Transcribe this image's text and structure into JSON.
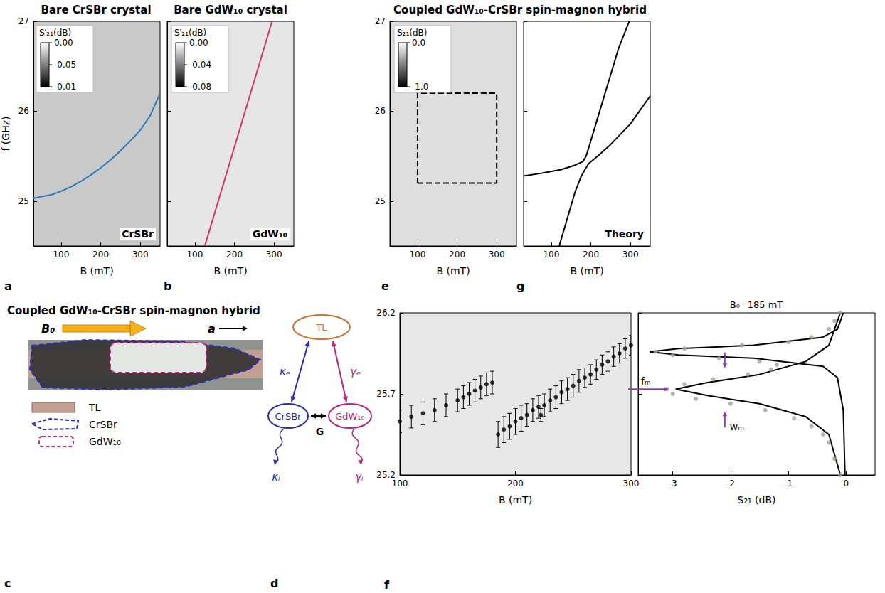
{
  "chart_data": [
    {
      "panel": "a",
      "title": "Bare CrSBr crystal",
      "type": "line",
      "xlabel": "B (mT)",
      "ylabel": "f (GHz)",
      "xlim": [
        30,
        350
      ],
      "xticks": [
        100,
        200,
        300
      ],
      "ylim": [
        24.5,
        27
      ],
      "yticks": [
        25,
        26,
        27
      ],
      "colorbar": {
        "label": "S′₂₁(dB)",
        "ticks": [
          {
            "value": 0,
            "label": "0.00"
          },
          {
            "value": -0.05,
            "label": "-0.05"
          },
          {
            "value": -0.01,
            "label": "-0.01"
          }
        ]
      },
      "annotation": "CrSBr",
      "series": [
        {
          "color": "#2a7ab9",
          "line_style": "solid",
          "x": [
            30,
            50,
            75,
            100,
            125,
            150,
            175,
            200,
            225,
            250,
            275,
            300,
            325,
            350
          ],
          "values": [
            25.03,
            25.05,
            25.07,
            25.11,
            25.16,
            25.22,
            25.29,
            25.37,
            25.46,
            25.56,
            25.67,
            25.79,
            25.95,
            26.2
          ]
        }
      ]
    },
    {
      "panel": "b",
      "title": "Bare GdW₁₀ crystal",
      "type": "line",
      "xlabel": "B (mT)",
      "xlim": [
        30,
        350
      ],
      "xticks": [
        100,
        200,
        300
      ],
      "ylim": [
        24.5,
        27
      ],
      "yticks": [
        25,
        26,
        27
      ],
      "tick_labels": "x",
      "colorbar": {
        "label": "S′₂₁(dB)",
        "ticks": [
          {
            "value": 0,
            "label": "0.00"
          },
          {
            "value": -0.04,
            "label": "-0.04"
          },
          {
            "value": -0.08,
            "label": "-0.08"
          }
        ]
      },
      "annotation": "GdW₁₀",
      "series": [
        {
          "color": "#d6336c",
          "line_style": "solid",
          "x": [
            125,
            295
          ],
          "values": [
            24.5,
            27
          ]
        }
      ]
    },
    {
      "panel": "e",
      "title": "Coupled GdW₁₀-CrSBr spin-magnon hybrid",
      "type": "line",
      "xlabel": "B (mT)",
      "xlim": [
        30,
        350
      ],
      "xticks": [
        100,
        200,
        300
      ],
      "ylim": [
        24.5,
        27
      ],
      "yticks": [
        25,
        26,
        27
      ],
      "colorbar": {
        "label": "S₂₁(dB)",
        "ticks": [
          {
            "value": 0,
            "label": "0.0"
          },
          {
            "value": -1,
            "label": "-1.0"
          }
        ]
      },
      "series": [
        {
          "color": "#000000",
          "line_style": "dashed",
          "x": [
            100,
            300,
            300,
            100,
            100
          ],
          "values": [
            25.2,
            25.2,
            26.2,
            26.2,
            25.2
          ]
        }
      ]
    },
    {
      "panel": "g",
      "type": "line",
      "xlabel": "B (mT)",
      "xlim": [
        30,
        350
      ],
      "xticks": [
        100,
        200,
        300
      ],
      "ylim": [
        24.5,
        27
      ],
      "yticks": [
        25,
        26,
        27
      ],
      "tick_labels": "x",
      "annotation": "Theory",
      "series": [
        {
          "color": "#000000",
          "line_style": "solid",
          "x": [
            120,
            140,
            160,
            175,
            185,
            195,
            220,
            250,
            300,
            350
          ],
          "values": [
            24.5,
            24.8,
            25.1,
            25.27,
            25.35,
            25.42,
            25.51,
            25.63,
            25.86,
            26.17
          ]
        },
        {
          "color": "#000000",
          "line_style": "solid",
          "x": [
            30,
            75,
            125,
            160,
            180,
            188,
            195,
            210,
            240,
            270,
            297
          ],
          "values": [
            25.28,
            25.31,
            25.35,
            25.4,
            25.44,
            25.5,
            25.6,
            25.82,
            26.26,
            26.7,
            27.0
          ]
        }
      ]
    },
    {
      "panel": "f",
      "type": "scatter",
      "xlabel": "B (mT)",
      "xlim": [
        100,
        300
      ],
      "xticks": [
        100,
        200,
        300
      ],
      "ylim": [
        25.2,
        26.2
      ],
      "yticks": [
        25.2,
        25.7,
        26.2
      ],
      "series": [
        {
          "color": "#000000",
          "marker": "circle",
          "x": [
            100,
            110,
            120,
            130,
            140,
            150,
            155,
            160,
            165,
            170,
            175,
            180,
            185,
            190,
            195,
            200,
            205,
            210,
            215,
            220,
            222,
            225,
            230,
            235,
            240,
            245,
            250,
            255,
            260,
            265,
            270,
            275,
            280,
            285,
            290,
            295,
            300
          ],
          "values": [
            25.53,
            25.56,
            25.58,
            25.6,
            25.63,
            25.66,
            25.68,
            25.7,
            25.72,
            25.74,
            25.76,
            25.77,
            25.45,
            25.48,
            25.5,
            25.53,
            25.55,
            25.57,
            25.6,
            25.62,
            25.57,
            25.63,
            25.66,
            25.68,
            25.71,
            25.73,
            25.75,
            25.78,
            25.8,
            25.82,
            25.85,
            25.88,
            25.9,
            25.93,
            25.95,
            25.98,
            26.0
          ],
          "errors": [
            0.07,
            0.07,
            0.07,
            0.07,
            0.07,
            0.07,
            0.07,
            0.07,
            0.07,
            0.07,
            0.07,
            0.07,
            0.08,
            0.08,
            0.08,
            0.08,
            0.08,
            0.07,
            0.07,
            0.07,
            0.04,
            0.07,
            0.07,
            0.07,
            0.07,
            0.07,
            0.07,
            0.07,
            0.06,
            0.06,
            0.06,
            0.06,
            0.06,
            0.06,
            0.06,
            0.06,
            0.06
          ]
        }
      ]
    },
    {
      "panel": "f",
      "title": "B₀=185 mT",
      "type": "line",
      "xlabel": "S₂₁ (dB)",
      "xlim": [
        -3.6,
        0.5
      ],
      "xticks": [
        -3,
        -2,
        -1,
        0
      ],
      "ylim": [
        25.2,
        26.2
      ],
      "yticks": [
        25.2,
        25.7,
        26.2
      ],
      "tick_labels": "x",
      "annotations": [
        {
          "text": "fₘ",
          "x": -3.0,
          "y": 25.73
        },
        {
          "text": "wₘ",
          "x": -2.1,
          "y": [
            25.59,
            25.86
          ]
        }
      ],
      "series": [
        {
          "type": "scatter",
          "marker": "circle",
          "color": "#9aa89a",
          "x": [
            -0.1,
            -0.2,
            -0.3,
            -0.6,
            -1.0,
            -1.8,
            -2.8,
            -3.3,
            -3.0,
            -2.2,
            -1.5,
            -1.2,
            -1.3,
            -1.7,
            -2.3,
            -2.8,
            -3.1,
            -3.0,
            -2.6,
            -2.0,
            -1.4,
            -0.9,
            -0.6,
            -0.4,
            -0.3,
            -0.2,
            -0.1
          ],
          "values": [
            26.2,
            26.15,
            26.1,
            26.05,
            26.02,
            26.0,
            25.98,
            25.96,
            25.94,
            25.92,
            25.9,
            25.88,
            25.85,
            25.82,
            25.79,
            25.76,
            25.73,
            25.7,
            25.67,
            25.64,
            25.6,
            25.55,
            25.5,
            25.45,
            25.4,
            25.3,
            25.2
          ]
        },
        {
          "color": "#000000",
          "line_style": "solid",
          "x": [
            -0.05,
            -0.15,
            -0.4,
            -1.6,
            -2.9,
            -3.4,
            -2.9,
            -1.6,
            -0.4,
            -0.15,
            -0.05,
            -0.02
          ],
          "values": [
            26.2,
            26.1,
            26.05,
            26.0,
            25.98,
            25.96,
            25.94,
            25.92,
            25.87,
            25.8,
            25.6,
            25.2
          ]
        },
        {
          "color": "#000000",
          "line_style": "solid",
          "x": [
            -0.1,
            -0.3,
            -0.7,
            -1.5,
            -2.4,
            -2.95,
            -2.4,
            -1.5,
            -0.7,
            -0.3,
            -0.1
          ],
          "values": [
            26.2,
            26.0,
            25.9,
            25.82,
            25.77,
            25.73,
            25.69,
            25.64,
            25.56,
            25.45,
            25.2
          ]
        }
      ]
    }
  ],
  "panel_c": {
    "panel": "c",
    "title": "Coupled GdW₁₀-CrSBr spin-magnon hybrid",
    "field_label": "B₀",
    "axis_label": "a",
    "key": [
      {
        "label": "TL"
      },
      {
        "label": "CrSBr"
      },
      {
        "label": "GdW₁₀"
      }
    ]
  },
  "panel_d": {
    "panel": "d",
    "nodes": [
      {
        "label": "TL"
      },
      {
        "label": "CrSBr"
      },
      {
        "label": "GdW₁₀"
      }
    ],
    "edges": [
      {
        "from": "CrSBr",
        "to": "TL",
        "label": "κₑ"
      },
      {
        "from": "GdW₁₀",
        "to": "TL",
        "label": "γₑ"
      },
      {
        "from": "CrSBr",
        "to": "GdW₁₀",
        "label": "G"
      }
    ],
    "losses": [
      {
        "node": "CrSBr",
        "label": "κᵢ"
      },
      {
        "node": "GdW₁₀",
        "label": "γᵢ"
      }
    ]
  }
}
